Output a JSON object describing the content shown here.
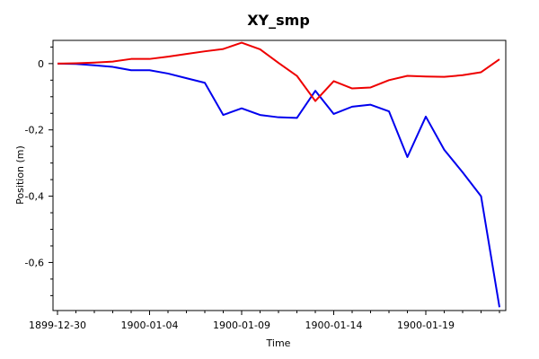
{
  "chart_data": {
    "type": "line",
    "title": "XY_smp",
    "xlabel": "Time",
    "ylabel": "Position (m)",
    "x_type": "date",
    "x_tick_labels": [
      "1899-12-30",
      "1900-01-04",
      "1900-01-09",
      "1900-01-14",
      "1900-01-19"
    ],
    "x_ticks": [
      "1899-12-30",
      "1900-01-04",
      "1900-01-09",
      "1900-01-14",
      "1900-01-19"
    ],
    "xlim": [
      "1899-12-30",
      "1900-01-23"
    ],
    "y_ticks": [
      0,
      -0.2,
      -0.4,
      -0.6
    ],
    "y_tick_labels": [
      "0",
      "-0,2",
      "-0,4",
      "-0,6"
    ],
    "ylim": [
      -0.745,
      0.07
    ],
    "grid": false,
    "x": [
      "1899-12-30",
      "1899-12-31",
      "1900-01-01",
      "1900-01-02",
      "1900-01-03",
      "1900-01-04",
      "1900-01-05",
      "1900-01-06",
      "1900-01-07",
      "1900-01-08",
      "1900-01-09",
      "1900-01-10",
      "1900-01-11",
      "1900-01-12",
      "1900-01-13",
      "1900-01-14",
      "1900-01-15",
      "1900-01-16",
      "1900-01-17",
      "1900-01-18",
      "1900-01-19",
      "1900-01-20",
      "1900-01-21",
      "1900-01-22",
      "1900-01-23"
    ],
    "series": [
      {
        "color": "#0000ee",
        "values": [
          0,
          -0.001,
          -0.005,
          -0.01,
          -0.02,
          -0.02,
          -0.03,
          -0.044,
          -0.058,
          -0.155,
          -0.135,
          -0.155,
          -0.162,
          -0.164,
          -0.082,
          -0.152,
          -0.13,
          -0.124,
          -0.144,
          -0.282,
          -0.16,
          -0.26,
          -0.328,
          -0.4,
          -0.735
        ]
      },
      {
        "color": "#ee0000",
        "values": [
          0,
          0.001,
          0.003,
          0.006,
          0.014,
          0.014,
          0.021,
          0.029,
          0.037,
          0.044,
          0.063,
          0.043,
          0.002,
          -0.037,
          -0.113,
          -0.053,
          -0.075,
          -0.072,
          -0.05,
          -0.037,
          -0.039,
          -0.04,
          -0.035,
          -0.026,
          0.013
        ]
      }
    ]
  }
}
